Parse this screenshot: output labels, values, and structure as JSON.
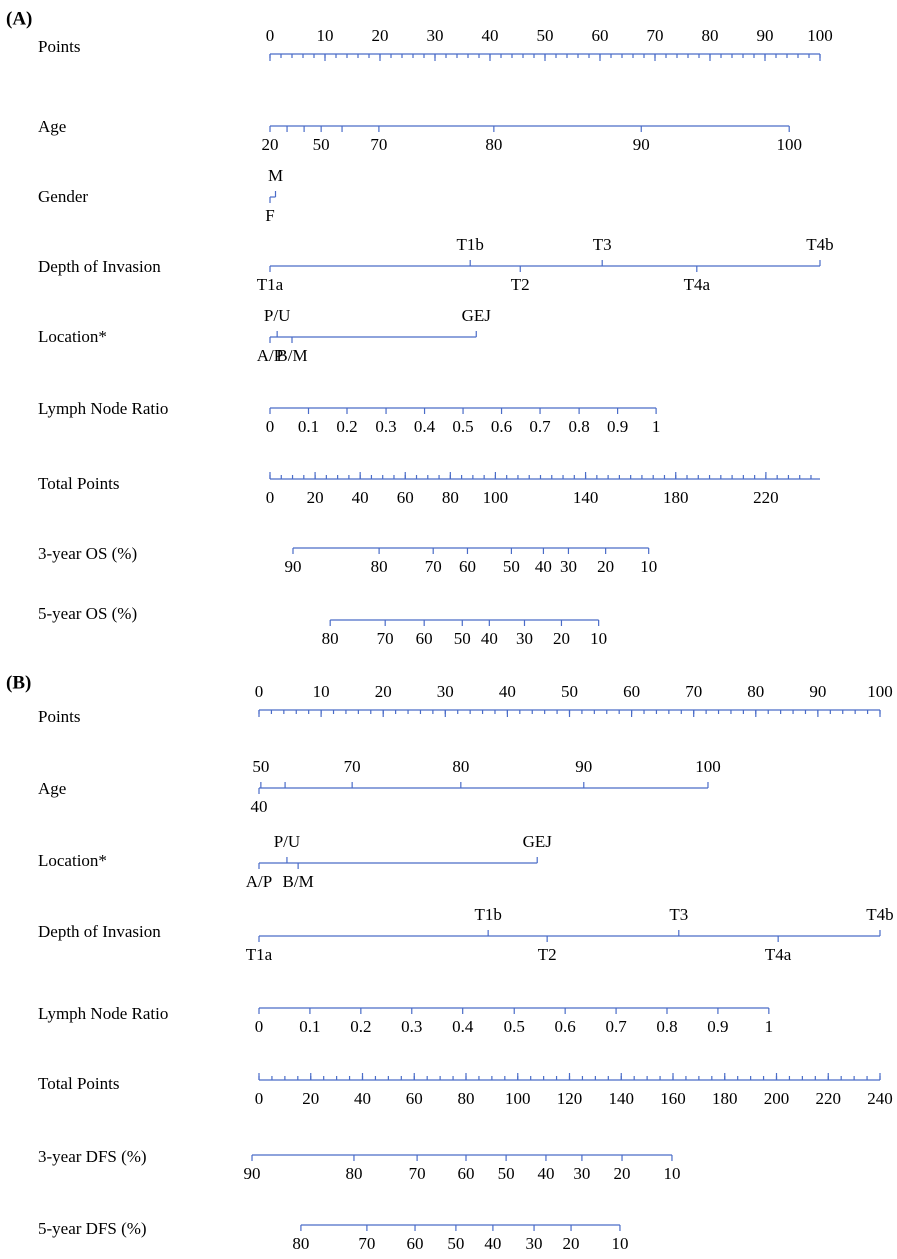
{
  "chart_data": [
    {
      "type": "nomogram",
      "label": "(A)",
      "rows": [
        {
          "name": "Points",
          "kind": "points",
          "xlim": [
            0,
            100
          ],
          "ticks": [
            0,
            10,
            20,
            30,
            40,
            50,
            60,
            70,
            80,
            90,
            100
          ],
          "minor_step": 2
        },
        {
          "name": "Age",
          "label_side": "below",
          "ticks": [
            {
              "label": "20",
              "points": 0
            },
            {
              "label": null,
              "points": 3.1
            },
            {
              "label": null,
              "points": 6.2
            },
            {
              "label": "50",
              "points": 9.3
            },
            {
              "label": null,
              "points": 13.1
            },
            {
              "label": "70",
              "points": 19.8
            },
            {
              "label": "80",
              "points": 40.7
            },
            {
              "label": "90",
              "points": 67.5
            },
            {
              "label": "100",
              "points": 94.4
            }
          ]
        },
        {
          "name": "Gender",
          "label_side": "below",
          "ticks": [
            {
              "label": "F",
              "points": 0
            },
            {
              "label": "M",
              "points": 1,
              "side": "above"
            }
          ]
        },
        {
          "name": "Depth of Invasion",
          "label_side": "below",
          "ticks": [
            {
              "label": "T1a",
              "points": 0
            },
            {
              "label": "T1b",
              "points": 36.4,
              "side": "above"
            },
            {
              "label": "T2",
              "points": 45.5
            },
            {
              "label": "T3",
              "points": 60.4,
              "side": "above"
            },
            {
              "label": "T4a",
              "points": 77.6
            },
            {
              "label": "T4b",
              "points": 100,
              "side": "above"
            }
          ]
        },
        {
          "name": "Location*",
          "label_side": "below",
          "ticks": [
            {
              "label": "A/P",
              "points": 0
            },
            {
              "label": "P/U",
              "points": 1.3,
              "side": "above"
            },
            {
              "label": "B/M",
              "points": 4.0
            },
            {
              "label": "GEJ",
              "points": 37.5,
              "side": "above"
            }
          ]
        },
        {
          "name": "Lymph Node Ratio",
          "label_side": "below",
          "ticks": [
            {
              "label": "0",
              "points": 0
            },
            {
              "label": "0.1",
              "points": 7.0
            },
            {
              "label": "0.2",
              "points": 14.0
            },
            {
              "label": "0.3",
              "points": 21.1
            },
            {
              "label": "0.4",
              "points": 28.1
            },
            {
              "label": "0.5",
              "points": 35.1
            },
            {
              "label": "0.6",
              "points": 42.1
            },
            {
              "label": "0.7",
              "points": 49.1
            },
            {
              "label": "0.8",
              "points": 56.2
            },
            {
              "label": "0.9",
              "points": 63.2
            },
            {
              "label": "1",
              "points": 70.2
            }
          ]
        },
        {
          "name": "Total Points",
          "kind": "total",
          "xlim": [
            0,
            244
          ],
          "ticks": [
            0,
            20,
            40,
            60,
            80,
            100,
            140,
            180,
            220
          ],
          "minor_step": 5
        },
        {
          "name": "3-year OS (%)",
          "scale": "total",
          "label_side": "below",
          "ticks": [
            {
              "label": "90",
              "points": 10.2
            },
            {
              "label": "80",
              "points": 48.4
            },
            {
              "label": "70",
              "points": 72.4
            },
            {
              "label": "60",
              "points": 87.6
            },
            {
              "label": "50",
              "points": 107.1
            },
            {
              "label": "40",
              "points": 121.3
            },
            {
              "label": "30",
              "points": 132.4
            },
            {
              "label": "20",
              "points": 148.9
            },
            {
              "label": "10",
              "points": 168
            }
          ]
        },
        {
          "name": "5-year OS (%)",
          "scale": "total",
          "label_side": "below",
          "ticks": [
            {
              "label": "80",
              "points": 26.7
            },
            {
              "label": "70",
              "points": 51.1
            },
            {
              "label": "60",
              "points": 68.4
            },
            {
              "label": "50",
              "points": 85.3
            },
            {
              "label": "40",
              "points": 97.3
            },
            {
              "label": "30",
              "points": 112.9
            },
            {
              "label": "20",
              "points": 129.3
            },
            {
              "label": "10",
              "points": 145.8
            }
          ]
        }
      ]
    },
    {
      "type": "nomogram",
      "label": "(B)",
      "rows": [
        {
          "name": "Points",
          "kind": "points",
          "xlim": [
            0,
            100
          ],
          "ticks": [
            0,
            10,
            20,
            30,
            40,
            50,
            60,
            70,
            80,
            90,
            100
          ],
          "minor_step": 2
        },
        {
          "name": "Age",
          "label_side": "above",
          "ticks": [
            {
              "label": "40",
              "points": 0,
              "side": "below"
            },
            {
              "label": "50",
              "points": 0.3
            },
            {
              "label": null,
              "points": 4.2
            },
            {
              "label": "70",
              "points": 15.0
            },
            {
              "label": "80",
              "points": 32.5
            },
            {
              "label": "90",
              "points": 52.3
            },
            {
              "label": "100",
              "points": 72.3
            }
          ]
        },
        {
          "name": "Location*",
          "label_side": "below",
          "ticks": [
            {
              "label": "A/P",
              "points": 0
            },
            {
              "label": "P/U",
              "points": 4.5,
              "side": "above"
            },
            {
              "label": "B/M",
              "points": 6.3
            },
            {
              "label": "GEJ",
              "points": 44.8,
              "side": "above"
            }
          ]
        },
        {
          "name": "Depth of Invasion",
          "label_side": "below",
          "ticks": [
            {
              "label": "T1a",
              "points": 0
            },
            {
              "label": "T1b",
              "points": 36.9,
              "side": "above"
            },
            {
              "label": "T2",
              "points": 46.4
            },
            {
              "label": "T3",
              "points": 67.6,
              "side": "above"
            },
            {
              "label": "T4a",
              "points": 83.6
            },
            {
              "label": "T4b",
              "points": 100,
              "side": "above"
            }
          ]
        },
        {
          "name": "Lymph Node Ratio",
          "label_side": "below",
          "ticks": [
            {
              "label": "0",
              "points": 0
            },
            {
              "label": "0.1",
              "points": 8.2
            },
            {
              "label": "0.2",
              "points": 16.4
            },
            {
              "label": "0.3",
              "points": 24.6
            },
            {
              "label": "0.4",
              "points": 32.8
            },
            {
              "label": "0.5",
              "points": 41.1
            },
            {
              "label": "0.6",
              "points": 49.3
            },
            {
              "label": "0.7",
              "points": 57.5
            },
            {
              "label": "0.8",
              "points": 65.7
            },
            {
              "label": "0.9",
              "points": 73.9
            },
            {
              "label": "1",
              "points": 82.1
            }
          ]
        },
        {
          "name": "Total Points",
          "kind": "total",
          "xlim": [
            0,
            240
          ],
          "ticks": [
            0,
            20,
            40,
            60,
            80,
            100,
            120,
            140,
            160,
            180,
            200,
            220,
            240
          ],
          "minor_step": 5
        },
        {
          "name": "3-year DFS (%)",
          "scale": "total",
          "label_side": "below",
          "ticks": [
            {
              "label": "90",
              "points": -2.7
            },
            {
              "label": "80",
              "points": 36.7
            },
            {
              "label": "70",
              "points": 61.1
            },
            {
              "label": "60",
              "points": 80.0
            },
            {
              "label": "50",
              "points": 95.5
            },
            {
              "label": "40",
              "points": 110.9
            },
            {
              "label": "30",
              "points": 124.8
            },
            {
              "label": "20",
              "points": 140.3
            },
            {
              "label": "10",
              "points": 159.6
            }
          ]
        },
        {
          "name": "5-year DFS (%)",
          "scale": "total",
          "label_side": "below",
          "ticks": [
            {
              "label": "80",
              "points": 16.2
            },
            {
              "label": "70",
              "points": 41.7
            },
            {
              "label": "60",
              "points": 60.3
            },
            {
              "label": "50",
              "points": 76.1
            },
            {
              "label": "40",
              "points": 90.4
            },
            {
              "label": "30",
              "points": 106.3
            },
            {
              "label": "20",
              "points": 120.6
            },
            {
              "label": "10",
              "points": 139.5
            }
          ]
        }
      ]
    }
  ]
}
